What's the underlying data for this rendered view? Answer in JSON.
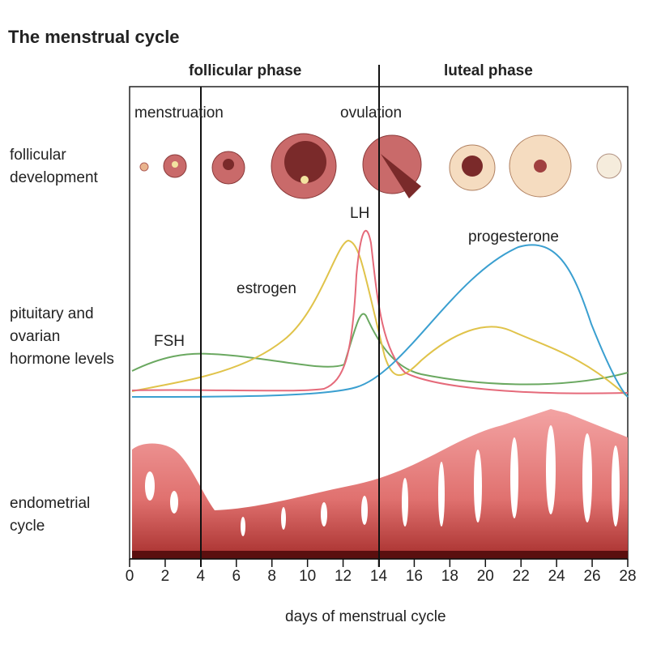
{
  "title": "The menstrual cycle",
  "phases": [
    "follicular phase",
    "luteal phase"
  ],
  "events": [
    "menstruation",
    "ovulation"
  ],
  "row_labels": [
    "follicular development",
    "pituitary and ovarian hormone levels",
    "endometrial cycle"
  ],
  "hormones": [
    "LH",
    "progesterone",
    "estrogen",
    "FSH"
  ],
  "axis": {
    "label": "days of menstrual cycle",
    "xlim": [
      0,
      28
    ],
    "xticks": [
      0,
      2,
      4,
      6,
      8,
      10,
      12,
      14,
      16,
      18,
      20,
      22,
      24,
      26,
      28
    ]
  }
}
